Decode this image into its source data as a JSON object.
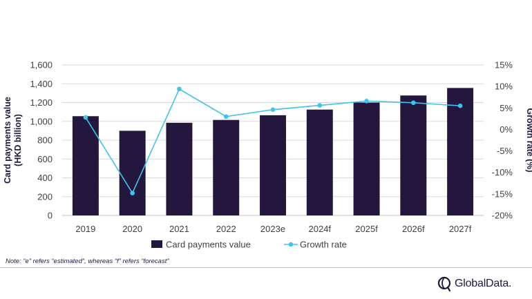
{
  "chart_data": {
    "type": "bar",
    "categories": [
      "2019",
      "2020",
      "2021",
      "2022",
      "2023e",
      "2024f",
      "2025f",
      "2026f",
      "2027f"
    ],
    "series": [
      {
        "name": "Card payments value",
        "type": "bar",
        "axis": "left",
        "values": [
          1055,
          900,
          985,
          1015,
          1065,
          1125,
          1200,
          1275,
          1355
        ]
      },
      {
        "name": "Growth rate",
        "type": "line",
        "axis": "right",
        "values": [
          2.8,
          -14.8,
          9.4,
          3.0,
          4.6,
          5.6,
          6.6,
          6.2,
          5.5
        ]
      }
    ],
    "ylabel": "Card payments value\n(HKD billion)",
    "ylabel_right": "Growth rate (%)",
    "ylim": [
      0,
      1600
    ],
    "ylim_right": [
      -20,
      15
    ],
    "yticks": [
      "0",
      "200",
      "400",
      "600",
      "800",
      "1,000",
      "1,200",
      "1,400",
      "1,600"
    ],
    "yticks_right": [
      "-20%",
      "-15%",
      "-10%",
      "-5%",
      "0%",
      "5%",
      "10%",
      "15%"
    ],
    "grid": true,
    "legend_position": "bottom",
    "colors": {
      "bar": "#23173e",
      "line": "#40c4ec",
      "grid": "#d9d9d9"
    }
  },
  "note": "Note: “e” refers “estimated”, whereas “f” refers “forecast”",
  "brand": {
    "name": "GlobalData.",
    "logo_icon": "globaldata-logo-icon"
  }
}
